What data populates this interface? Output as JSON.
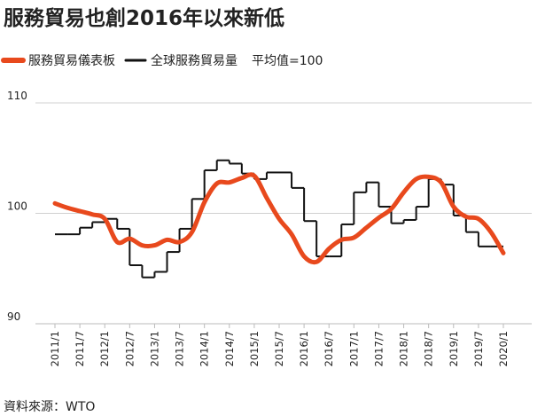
{
  "chart_data": {
    "type": "line",
    "title": "服務貿易也創2016年以來新低",
    "note": "平均值=100",
    "source": "資料來源：WTO",
    "categories": [
      "2011/1",
      null,
      "2011/7",
      null,
      "2012/1",
      null,
      "2012/7",
      null,
      "2013/1",
      null,
      "2013/7",
      null,
      "2014/1",
      null,
      "2014/7",
      null,
      "2015/1",
      null,
      "2015/7",
      null,
      "2016/1",
      null,
      "2016/7",
      null,
      "2017/1",
      null,
      "2017/7",
      null,
      "2018/1",
      null,
      "2018/7",
      null,
      "2019/1",
      null,
      "2019/7",
      null,
      "2020/1"
    ],
    "series": [
      {
        "name": "服務貿易儀表板",
        "color": "#e8491d",
        "style": "smooth",
        "values": [
          100.9,
          100.5,
          100.2,
          99.9,
          99.5,
          97.4,
          97.7,
          97.1,
          97.1,
          97.6,
          97.4,
          98.3,
          101.0,
          102.7,
          102.8,
          103.2,
          103.4,
          101.4,
          99.5,
          98.1,
          96.1,
          95.6,
          96.8,
          97.6,
          97.8,
          98.7,
          99.6,
          100.4,
          101.9,
          103.1,
          103.3,
          102.8,
          100.6,
          99.7,
          99.5,
          98.3,
          96.4
        ]
      },
      {
        "name": "全球服務貿易量",
        "color": "#111111",
        "style": "step",
        "values": [
          98.1,
          98.1,
          98.7,
          99.2,
          99.5,
          98.6,
          95.3,
          94.2,
          94.7,
          96.5,
          98.6,
          101.3,
          103.9,
          104.8,
          104.5,
          103.6,
          103.1,
          103.7,
          103.7,
          102.3,
          99.3,
          96.1,
          96.1,
          99.0,
          101.9,
          102.8,
          100.6,
          99.1,
          99.4,
          100.6,
          103.1,
          102.6,
          99.8,
          98.3,
          97.0,
          97.0,
          null
        ]
      }
    ],
    "ylim": [
      90,
      110
    ],
    "yticks": [
      90,
      100,
      110
    ],
    "grid": true
  }
}
